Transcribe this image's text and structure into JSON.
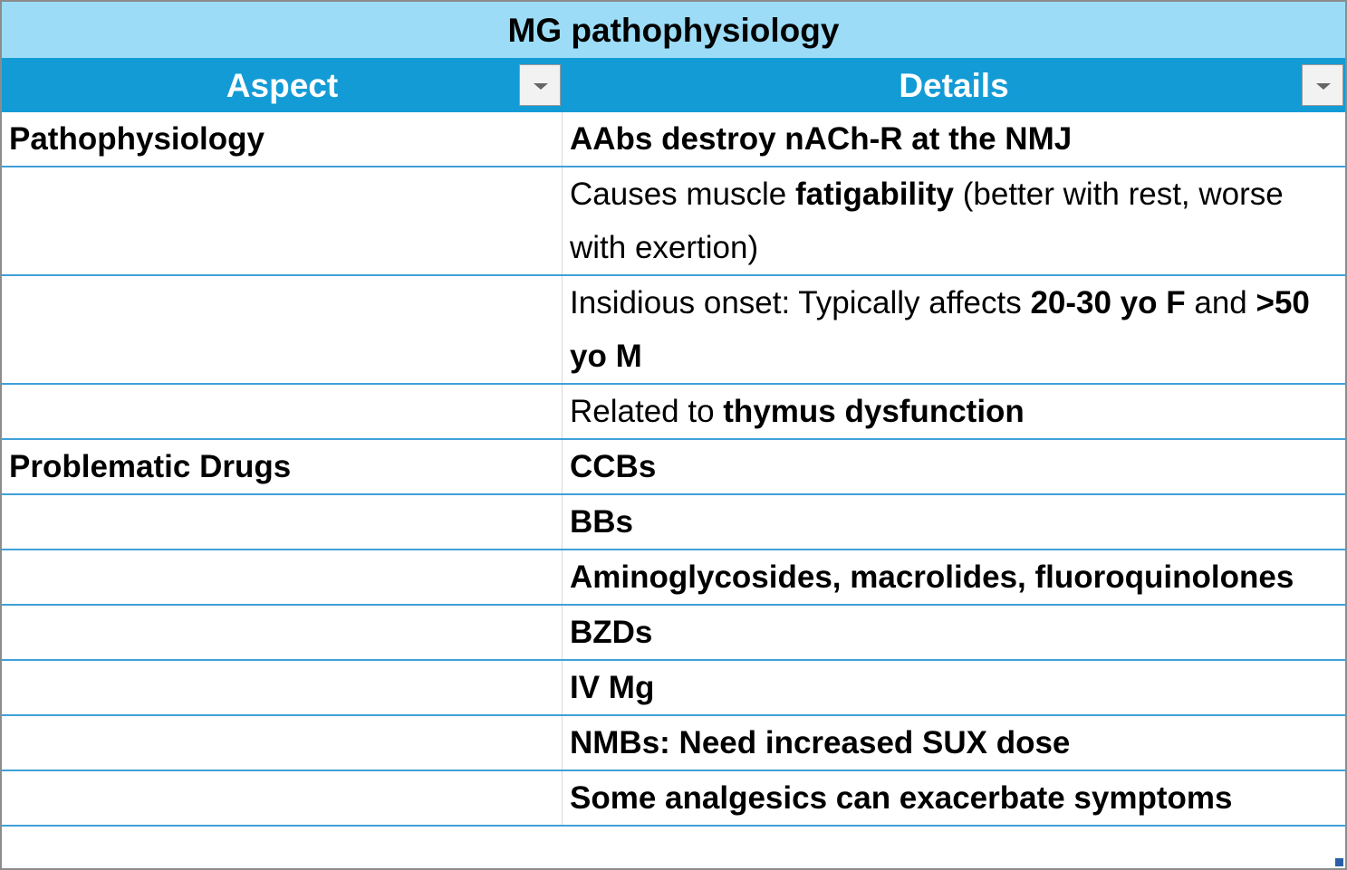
{
  "title": "MG pathophysiology",
  "columns": [
    "Aspect",
    "Details"
  ],
  "rows": [
    {
      "aspect": "Pathophysiology",
      "details": [
        {
          "text": "AAbs destroy nACh-R at the NMJ",
          "bold": true
        }
      ]
    },
    {
      "aspect": null,
      "details": [
        {
          "text": "Causes muscle ",
          "bold": false
        },
        {
          "text": "fatigability",
          "bold": true
        },
        {
          "text": " (better with rest, worse with exertion)",
          "bold": false
        }
      ]
    },
    {
      "aspect": null,
      "details": [
        {
          "text": "Insidious onset: Typically affects ",
          "bold": false
        },
        {
          "text": "20-30 yo F",
          "bold": true
        },
        {
          "text": " and ",
          "bold": false
        },
        {
          "text": ">50 yo M",
          "bold": true
        }
      ]
    },
    {
      "aspect": null,
      "details": [
        {
          "text": "Related to ",
          "bold": false
        },
        {
          "text": "thymus dysfunction",
          "bold": true
        }
      ]
    },
    {
      "aspect": "Problematic Drugs",
      "details": [
        {
          "text": "CCBs",
          "bold": true
        }
      ]
    },
    {
      "aspect": null,
      "details": [
        {
          "text": "BBs",
          "bold": true
        }
      ]
    },
    {
      "aspect": null,
      "details": [
        {
          "text": "Aminoglycosides, macrolides, fluoroquinolones",
          "bold": true
        }
      ]
    },
    {
      "aspect": null,
      "details": [
        {
          "text": "BZDs",
          "bold": true
        }
      ]
    },
    {
      "aspect": null,
      "details": [
        {
          "text": "IV Mg",
          "bold": true
        }
      ]
    },
    {
      "aspect": null,
      "details": [
        {
          "text": "NMBs: Need increased SUX dose",
          "bold": true
        }
      ]
    },
    {
      "aspect": null,
      "details": [
        {
          "text": "Some analgesics can exacerbate symptoms",
          "bold": true
        }
      ]
    }
  ]
}
